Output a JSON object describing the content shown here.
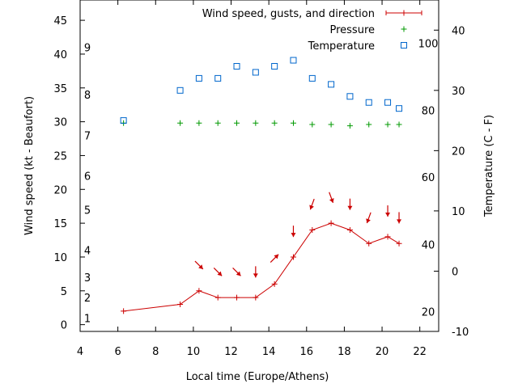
{
  "chart_data": {
    "type": "line",
    "xlabel": "Local time (Europe/Athens)",
    "ylabel_left": "Wind speed (kt - Beaufort)",
    "ylabel_right": "Temperature (C - F)",
    "xlim": [
      4,
      23
    ],
    "ylim_left": [
      -1,
      48
    ],
    "ylim_right_celsius": [
      -10,
      45
    ],
    "x_ticks": [
      4,
      6,
      8,
      10,
      12,
      14,
      16,
      18,
      20,
      22
    ],
    "y_ticks_left": [
      0,
      5,
      10,
      15,
      20,
      25,
      30,
      35,
      40,
      45
    ],
    "y_ticks_right_celsius": [
      -10,
      0,
      10,
      20,
      30,
      40
    ],
    "beaufort_labels": [
      {
        "label": "1",
        "kt": 1
      },
      {
        "label": "2",
        "kt": 4
      },
      {
        "label": "3",
        "kt": 7
      },
      {
        "label": "4",
        "kt": 11
      },
      {
        "label": "5",
        "kt": 17
      },
      {
        "label": "6",
        "kt": 22
      },
      {
        "label": "7",
        "kt": 28
      },
      {
        "label": "8",
        "kt": 34
      },
      {
        "label": "9",
        "kt": 41
      }
    ],
    "fahrenheit_labels": [
      {
        "label": "20",
        "celsius": -6.7
      },
      {
        "label": "40",
        "celsius": 4.4
      },
      {
        "label": "60",
        "celsius": 15.6
      },
      {
        "label": "80",
        "celsius": 26.7
      },
      {
        "label": "100",
        "celsius": 37.8
      }
    ],
    "legend_position": "top-right",
    "series": [
      {
        "name": "Wind speed, gusts, and direction",
        "color": "#cc0000",
        "marker": "plus-line",
        "x": [
          6.3,
          9.3,
          10.3,
          11.3,
          12.3,
          13.3,
          14.3,
          15.3,
          16.3,
          17.3,
          18.3,
          19.3,
          20.3,
          20.9
        ],
        "y": [
          2,
          3,
          5,
          4,
          4,
          4,
          6,
          10,
          14,
          15,
          14,
          12,
          13,
          12
        ]
      },
      {
        "name": "Pressure",
        "color": "#009900",
        "marker": "plus",
        "x": [
          6.3,
          9.3,
          10.3,
          11.3,
          12.3,
          13.3,
          14.3,
          15.3,
          16.3,
          17.3,
          18.3,
          19.3,
          20.3,
          20.9
        ],
        "y": [
          29.8,
          29.8,
          29.8,
          29.8,
          29.8,
          29.8,
          29.8,
          29.8,
          29.6,
          29.6,
          29.4,
          29.6,
          29.6,
          29.6
        ]
      },
      {
        "name": "Temperature",
        "color": "#0066cc",
        "marker": "square",
        "axis": "right_celsius",
        "x": [
          6.3,
          9.3,
          10.3,
          11.3,
          12.3,
          13.3,
          14.3,
          15.3,
          16.3,
          17.3,
          18.3,
          19.3,
          20.3,
          20.9
        ],
        "y": [
          25,
          30,
          32,
          32,
          34,
          33,
          34,
          35,
          32,
          31,
          29,
          28,
          28,
          27
        ]
      }
    ],
    "wind_direction_arrows": {
      "color": "#cc0000",
      "x": [
        10.3,
        11.3,
        12.3,
        13.3,
        14.3,
        15.3,
        16.3,
        17.3,
        18.3,
        19.3,
        20.3,
        20.9
      ],
      "angle_deg": [
        135,
        135,
        135,
        180,
        45,
        180,
        200,
        160,
        180,
        200,
        180,
        180
      ]
    }
  }
}
